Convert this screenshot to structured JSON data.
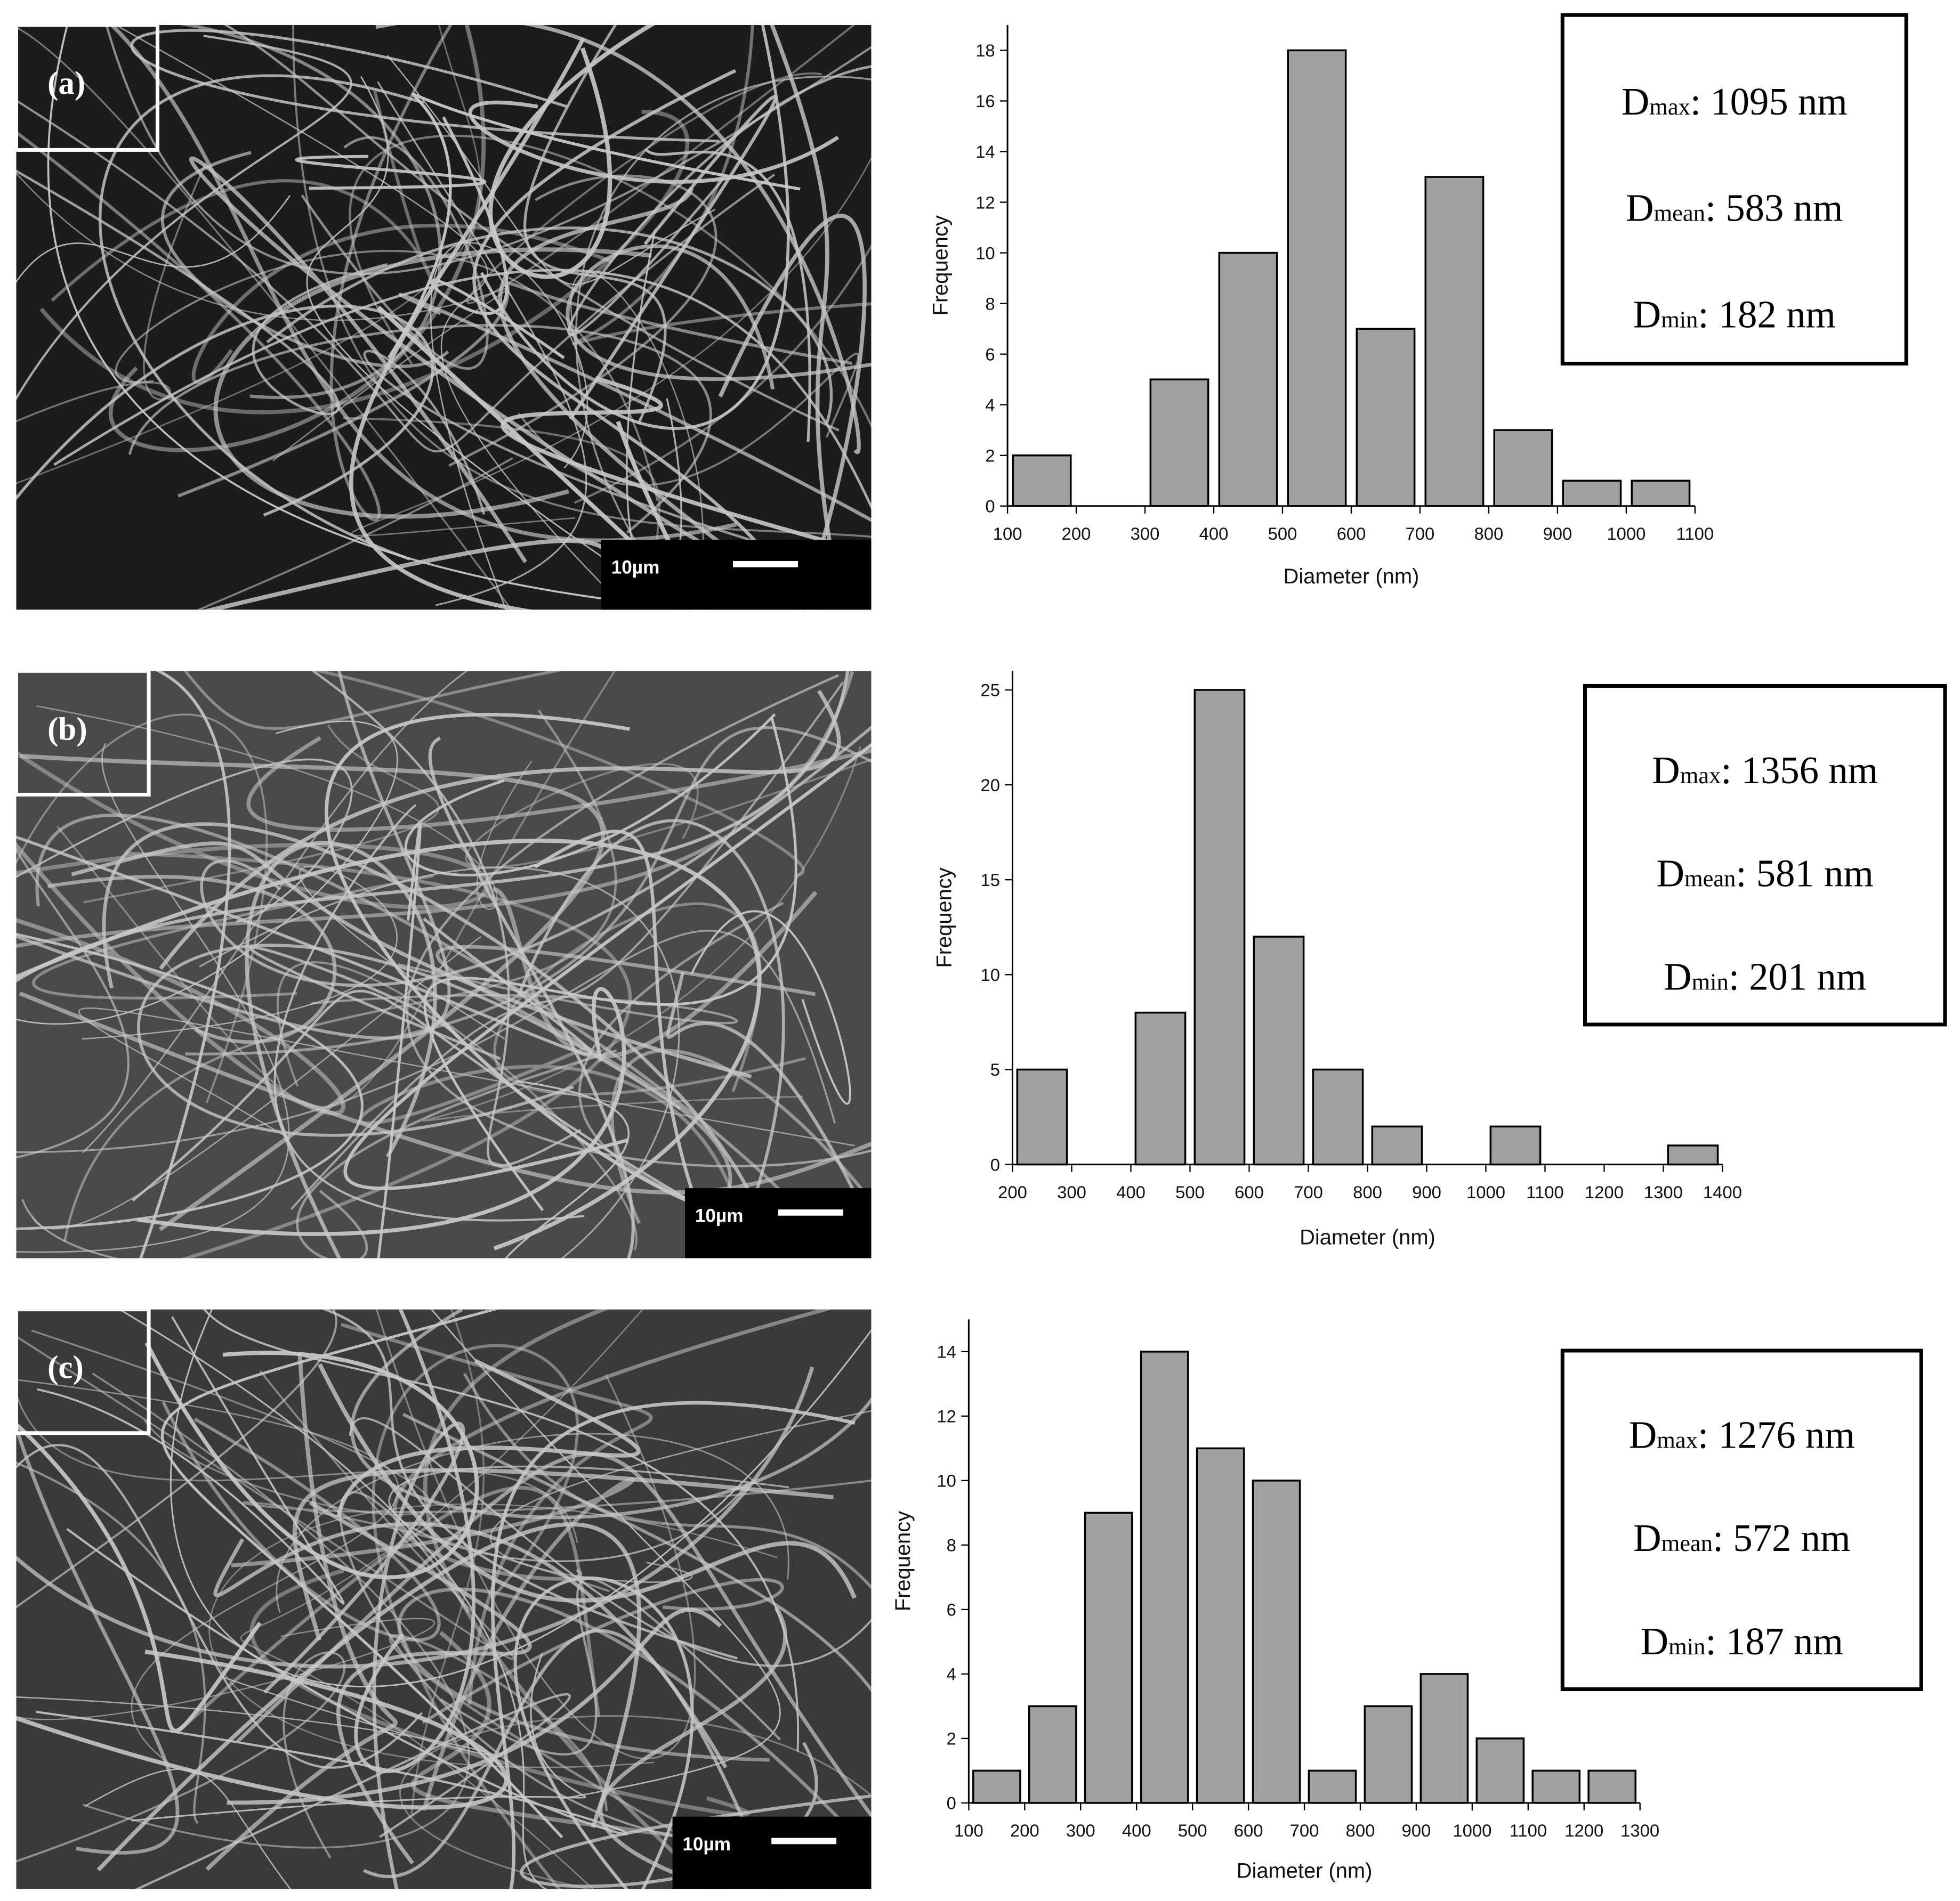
{
  "chart_data": [
    {
      "type": "histogram",
      "panel_label": "(a)",
      "scale_bar_label": "10µm",
      "xlabel": "Diameter (nm)",
      "ylabel": "Frequency",
      "bins": [
        100,
        200,
        300,
        400,
        500,
        600,
        700,
        800,
        900,
        1000,
        1100
      ],
      "values": [
        2,
        0,
        5,
        10,
        18,
        7,
        13,
        3,
        1,
        1
      ],
      "color": "#a0a0a0",
      "xlim": [
        100,
        1100
      ],
      "xticks": [
        100,
        200,
        300,
        400,
        500,
        600,
        700,
        800,
        900,
        1000,
        1100
      ],
      "ylim": [
        0,
        19
      ],
      "yticks": [
        0,
        2,
        4,
        6,
        8,
        10,
        12,
        14,
        16,
        18
      ],
      "annotations": [
        {
          "main": "D",
          "sub": "max",
          "rest": ": 1095 nm"
        },
        {
          "main": "D",
          "sub": "mean",
          "rest": ": 583 nm"
        },
        {
          "main": "D",
          "sub": "min",
          "rest": ": 182 nm"
        }
      ]
    },
    {
      "type": "histogram",
      "panel_label": "(b)",
      "scale_bar_label": "10µm",
      "xlabel": "Diameter (nm)",
      "ylabel": "Frequency",
      "bins": [
        200,
        300,
        400,
        500,
        600,
        700,
        800,
        900,
        1000,
        1100,
        1200,
        1300,
        1400
      ],
      "values": [
        5,
        0,
        8,
        25,
        12,
        5,
        2,
        0,
        2,
        0,
        0,
        1
      ],
      "color": "#a0a0a0",
      "xlim": [
        200,
        1400
      ],
      "xticks": [
        200,
        300,
        400,
        500,
        600,
        700,
        800,
        900,
        1000,
        1100,
        1200,
        1300,
        1400
      ],
      "ylim": [
        0,
        26
      ],
      "yticks": [
        0,
        5,
        10,
        15,
        20,
        25
      ],
      "annotations": [
        {
          "main": "D",
          "sub": "max",
          "rest": ": 1356 nm"
        },
        {
          "main": "D",
          "sub": "mean",
          "rest": ": 581 nm"
        },
        {
          "main": "D",
          "sub": "min",
          "rest": ": 201 nm"
        }
      ]
    },
    {
      "type": "histogram",
      "panel_label": "(c)",
      "scale_bar_label": "10µm",
      "xlabel": "Diameter (nm)",
      "ylabel": "Frequency",
      "bins": [
        100,
        200,
        300,
        400,
        500,
        600,
        700,
        800,
        900,
        1000,
        1100,
        1200,
        1300
      ],
      "values": [
        1,
        3,
        9,
        14,
        11,
        10,
        1,
        3,
        4,
        2,
        1,
        1
      ],
      "color": "#a0a0a0",
      "xlim": [
        100,
        1300
      ],
      "xticks": [
        100,
        200,
        300,
        400,
        500,
        600,
        700,
        800,
        900,
        1000,
        1100,
        1200,
        1300
      ],
      "ylim": [
        0,
        15
      ],
      "yticks": [
        0,
        2,
        4,
        6,
        8,
        10,
        12,
        14
      ],
      "annotations": [
        {
          "main": "D",
          "sub": "max",
          "rest": ": 1276 nm"
        },
        {
          "main": "D",
          "sub": "mean",
          "rest": ": 572 nm"
        },
        {
          "main": "D",
          "sub": "min",
          "rest": ": 187 nm"
        }
      ]
    }
  ]
}
